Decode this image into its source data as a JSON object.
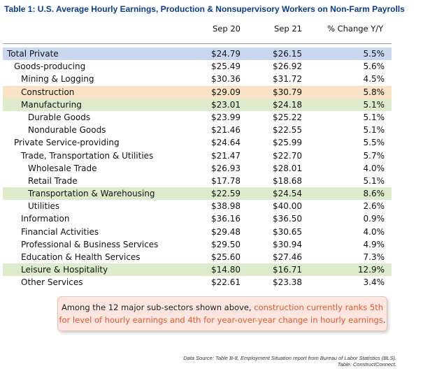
{
  "title": "Table 1: U.S. Average Hourly Earnings, Production & Nonsupervisory Workers on Non-Farm Payrolls",
  "columns": {
    "sep20": "Sep 20",
    "sep21": "Sep 21",
    "change": "% Change Y/Y"
  },
  "rows": [
    {
      "label": "Total Private",
      "sep20": "$24.79",
      "sep21": "$26.15",
      "change": "5.5%"
    },
    {
      "label": "Goods-producing",
      "sep20": "$25.49",
      "sep21": "$26.92",
      "change": "5.6%"
    },
    {
      "label": "Mining & Logging",
      "sep20": "$30.36",
      "sep21": "$31.72",
      "change": "4.5%"
    },
    {
      "label": "Construction",
      "sep20": "$29.09",
      "sep21": "$30.79",
      "change": "5.8%"
    },
    {
      "label": "Manufacturing",
      "sep20": "$23.01",
      "sep21": "$24.18",
      "change": "5.1%"
    },
    {
      "label": "Durable Goods",
      "sep20": "$23.99",
      "sep21": "$25.22",
      "change": "5.1%"
    },
    {
      "label": "Nondurable Goods",
      "sep20": "$21.46",
      "sep21": "$22.55",
      "change": "5.1%"
    },
    {
      "label": "Private Service-providing",
      "sep20": "$24.64",
      "sep21": "$25.99",
      "change": "5.5%"
    },
    {
      "label": "Trade, Transportation & Utilities",
      "sep20": "$21.47",
      "sep21": "$22.70",
      "change": "5.7%"
    },
    {
      "label": "Wholesale Trade",
      "sep20": "$26.93",
      "sep21": "$28.01",
      "change": "4.0%"
    },
    {
      "label": "Retail Trade",
      "sep20": "$17.78",
      "sep21": "$18.68",
      "change": "5.1%"
    },
    {
      "label": "Transportation & Warehousing",
      "sep20": "$22.59",
      "sep21": "$24.54",
      "change": "8.6%"
    },
    {
      "label": "Utilities",
      "sep20": "$38.98",
      "sep21": "$40.00",
      "change": "2.6%"
    },
    {
      "label": "Information",
      "sep20": "$36.16",
      "sep21": "$36.50",
      "change": "0.9%"
    },
    {
      "label": "Financial Activities",
      "sep20": "$29.48",
      "sep21": "$30.65",
      "change": "4.0%"
    },
    {
      "label": "Professional & Business Services",
      "sep20": "$29.50",
      "sep21": "$30.94",
      "change": "4.9%"
    },
    {
      "label": "Education & Health Services",
      "sep20": "$25.60",
      "sep21": "$27.46",
      "change": "7.3%"
    },
    {
      "label": "Leisure & Hospitality",
      "sep20": "$14.80",
      "sep21": "$16.71",
      "change": "12.9%"
    },
    {
      "label": "Other Services",
      "sep20": "$22.61",
      "sep21": "$23.38",
      "change": "3.4%"
    }
  ],
  "callout": {
    "part1": "Among the 12 major sub-sectors shown above, ",
    "highlight": "construction currently ranks 5th for level of hourly earnings and 4th for year-over-year change in hourly earnings",
    "part2": "."
  },
  "source": {
    "line1": "Data Source: Table B-8, Employment Situation report from Bureau of Labor Statistics (BLS).",
    "line2": "Table: ConstructConnect."
  },
  "colors": {
    "title": "#0b3b8c",
    "highlight_blue": "#c9d6ee",
    "highlight_orange": "#f9e2c6",
    "highlight_green": "#ddebcc",
    "callout_text_accent": "#e4572e",
    "callout_bg": "#fce6df"
  }
}
